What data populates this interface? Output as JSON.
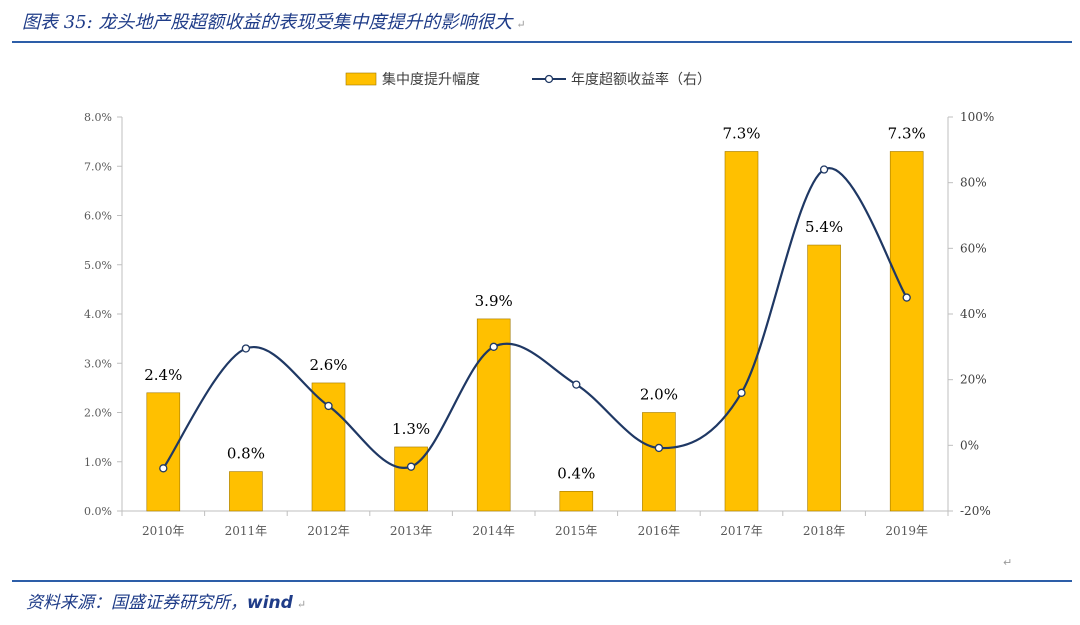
{
  "header": {
    "title": "图表 35: 龙头地产股超额收益的表现受集中度提升的影响很大"
  },
  "source": {
    "prefix": "资料来源：国盛证券研究所，",
    "name": "wind"
  },
  "colors": {
    "bar": "#ffc000",
    "bar_edge": "#a07800",
    "line": "#1f3864",
    "accent": "#2d5ea8"
  },
  "chart_data": {
    "type": "bar",
    "categories": [
      "2010年",
      "2011年",
      "2012年",
      "2013年",
      "2014年",
      "2015年",
      "2016年",
      "2017年",
      "2018年",
      "2019年"
    ],
    "series": [
      {
        "name": "集中度提升幅度",
        "type": "bar",
        "axis": "left",
        "values": [
          2.4,
          0.8,
          2.6,
          1.3,
          3.9,
          0.4,
          2.0,
          7.3,
          5.4,
          7.3
        ],
        "labels": [
          "2.4%",
          "0.8%",
          "2.6%",
          "1.3%",
          "3.9%",
          "0.4%",
          "2.0%",
          "7.3%",
          "5.4%",
          "7.3%"
        ]
      },
      {
        "name": "年度超额收益率（右）",
        "type": "line",
        "axis": "right",
        "smooth": true,
        "markers": "circle",
        "values": [
          -7,
          29.5,
          12,
          -6.5,
          30,
          18.5,
          -0.8,
          16,
          84,
          45
        ]
      }
    ],
    "y_left": {
      "min": 0,
      "max": 8,
      "ticks": [
        "0.0%",
        "1.0%",
        "2.0%",
        "3.0%",
        "4.0%",
        "5.0%",
        "6.0%",
        "7.0%",
        "8.0%"
      ]
    },
    "y_right": {
      "min": -20,
      "max": 100,
      "ticks": [
        "-20%",
        "0%",
        "20%",
        "40%",
        "60%",
        "80%",
        "100%"
      ]
    },
    "legend": {
      "position": "top-center"
    },
    "grid": false
  }
}
